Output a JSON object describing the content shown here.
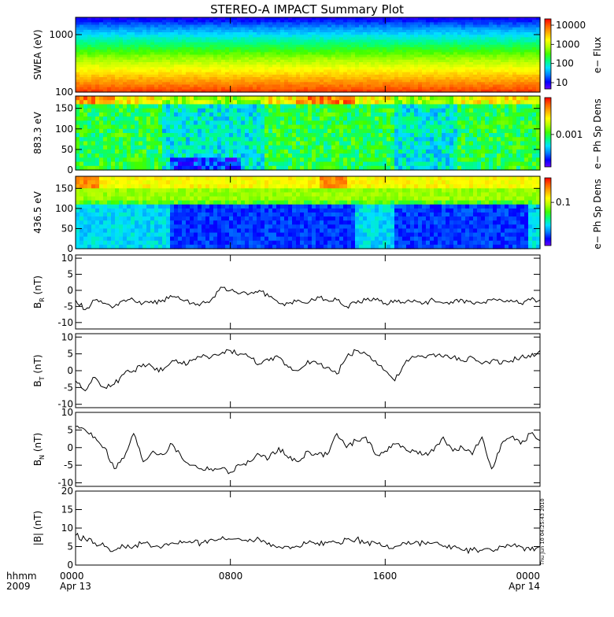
{
  "title": "STEREO-A IMPACT Summary Plot",
  "x_axis": {
    "row1_labels": [
      "hhmm",
      "0000",
      "0800",
      "1600",
      "0000"
    ],
    "row2_labels": [
      "2009",
      "Apr 13",
      "Apr 14"
    ]
  },
  "timestamp": "Thu Jun 10 04:25:43 2010",
  "colors": {
    "spectrum": [
      "#6a00ff",
      "#0000ff",
      "#0080ff",
      "#00e0ff",
      "#00ff80",
      "#40ff00",
      "#b0ff00",
      "#ffff00",
      "#ffb000",
      "#ff6000",
      "#ff0000"
    ]
  },
  "chart_data": [
    {
      "type": "heatmap",
      "name": "swea",
      "ylabel": "SWEA (eV)",
      "yscale": "log",
      "ylim": [
        100,
        2000
      ],
      "yticks": [
        "1000",
        "100"
      ],
      "colorbar_label": "e− Flux",
      "colorbar_ticks": [
        "10000",
        "1000",
        "100",
        "10"
      ],
      "colorbar_range": [
        3,
        30000
      ],
      "description_values": [
        {
          "energy_eV": 100,
          "flux": 20000
        },
        {
          "energy_eV": 200,
          "flux": 8000
        },
        {
          "energy_eV": 400,
          "flux": 800
        },
        {
          "energy_eV": 800,
          "flux": 150
        },
        {
          "energy_eV": 1500,
          "flux": 15
        },
        {
          "energy_eV": 2000,
          "flux": 5
        }
      ]
    },
    {
      "type": "heatmap",
      "name": "pad883",
      "ylabel": "883.3 eV",
      "ylim": [
        0,
        180
      ],
      "yticks": [
        "150",
        "100",
        "50",
        "0"
      ],
      "colorbar_label": "e− Ph Sp Dens",
      "colorbar_ticks": [
        "0.001"
      ],
      "colorbar_range": [
        0.0001,
        0.01
      ]
    },
    {
      "type": "heatmap",
      "name": "pad436",
      "ylabel": "436.5 eV",
      "ylim": [
        0,
        180
      ],
      "yticks": [
        "150",
        "100",
        "50",
        "0"
      ],
      "colorbar_label": "e− Ph Sp Dens",
      "colorbar_ticks": [
        "0.1"
      ],
      "colorbar_range": [
        0.01,
        1
      ]
    },
    {
      "type": "line",
      "name": "br",
      "ylabel": "B",
      "ylabel_sub": "R",
      "ylabel_unit": "(nT)",
      "ylim": [
        -12,
        11
      ],
      "yticks": [
        "10",
        "5",
        "0",
        "-5",
        "-10"
      ],
      "x": [
        0,
        0.5,
        1,
        1.5,
        2,
        2.5,
        3,
        3.5,
        4,
        4.5,
        5,
        5.5,
        6,
        6.5,
        7,
        7.5,
        8,
        8.5,
        9,
        9.5,
        10,
        10.5,
        11,
        11.5,
        12,
        12.5,
        13,
        13.5,
        14,
        14.5,
        15,
        15.5,
        16,
        16.5,
        17,
        17.5,
        18,
        18.5,
        19,
        19.5,
        20,
        20.5,
        21,
        21.5,
        22,
        22.5,
        23,
        23.5,
        24
      ],
      "values": [
        -3,
        -6,
        -3,
        -4,
        -5,
        -3,
        -3,
        -4,
        -4,
        -3,
        -2,
        -3,
        -4,
        -4,
        -3,
        1,
        0,
        -1,
        -1,
        0,
        -2,
        -4,
        -4,
        -3,
        -4,
        -2,
        -3,
        -3,
        -5,
        -4,
        -3,
        -3,
        -4,
        -3,
        -4,
        -3,
        -4,
        -3,
        -4,
        -4,
        -3,
        -4,
        -4,
        -3,
        -3,
        -3,
        -4,
        -3,
        -3
      ]
    },
    {
      "type": "line",
      "name": "bt",
      "ylabel": "B",
      "ylabel_sub": "T",
      "ylabel_unit": "(nT)",
      "ylim": [
        -11,
        11
      ],
      "yticks": [
        "10",
        "5",
        "0",
        "-5",
        "-10"
      ],
      "x": [
        0,
        0.5,
        1,
        1.5,
        2,
        2.5,
        3,
        3.5,
        4,
        4.5,
        5,
        5.5,
        6,
        6.5,
        7,
        7.5,
        8,
        8.5,
        9,
        9.5,
        10,
        10.5,
        11,
        11.5,
        12,
        12.5,
        13,
        13.5,
        14,
        14.5,
        15,
        15.5,
        16,
        16.5,
        17,
        17.5,
        18,
        18.5,
        19,
        19.5,
        20,
        20.5,
        21,
        21.5,
        22,
        22.5,
        23,
        23.5,
        24
      ],
      "values": [
        -3,
        -6,
        -2,
        -5,
        -4,
        -1,
        0,
        2,
        1,
        0,
        3,
        2,
        3,
        4,
        4,
        5,
        6,
        5,
        4,
        2,
        3,
        4,
        1,
        0,
        3,
        2,
        1,
        -1,
        4,
        6,
        5,
        3,
        0,
        -3,
        2,
        4,
        4,
        5,
        4,
        4,
        3,
        4,
        2,
        3,
        2,
        3,
        4,
        4,
        6
      ]
    },
    {
      "type": "line",
      "name": "bn",
      "ylabel": "B",
      "ylabel_sub": "N",
      "ylabel_unit": "(nT)",
      "ylim": [
        -11,
        10
      ],
      "yticks": [
        "10",
        "5",
        "0",
        "-5",
        "-10"
      ],
      "x": [
        0,
        0.5,
        1,
        1.5,
        2,
        2.5,
        3,
        3.5,
        4,
        4.5,
        5,
        5.5,
        6,
        6.5,
        7,
        7.5,
        8,
        8.5,
        9,
        9.5,
        10,
        10.5,
        11,
        11.5,
        12,
        12.5,
        13,
        13.5,
        14,
        14.5,
        15,
        15.5,
        16,
        16.5,
        17,
        17.5,
        18,
        18.5,
        19,
        19.5,
        20,
        20.5,
        21,
        21.5,
        22,
        22.5,
        23,
        23.5,
        24
      ],
      "values": [
        6,
        5,
        3,
        0,
        -6,
        -3,
        4,
        -4,
        -1,
        -2,
        1,
        -3,
        -5,
        -6,
        -6,
        -6,
        -7,
        -5,
        -4,
        -2,
        -3,
        0,
        -3,
        -4,
        -1,
        -2,
        -2,
        4,
        0,
        2,
        3,
        -2,
        -1,
        1,
        0,
        -1,
        -2,
        -1,
        3,
        -1,
        0,
        -2,
        3,
        -6,
        1,
        3,
        1,
        4,
        2
      ]
    },
    {
      "type": "line",
      "name": "btot",
      "ylabel": "|B|",
      "ylabel_unit": "(nT)",
      "ylim": [
        0,
        20
      ],
      "yticks": [
        "20",
        "15",
        "10",
        "5",
        "0"
      ],
      "x": [
        0,
        0.5,
        1,
        1.5,
        2,
        2.5,
        3,
        3.5,
        4,
        4.5,
        5,
        5.5,
        6,
        6.5,
        7,
        7.5,
        8,
        8.5,
        9,
        9.5,
        10,
        10.5,
        11,
        11.5,
        12,
        12.5,
        13,
        13.5,
        14,
        14.5,
        15,
        15.5,
        16,
        16.5,
        17,
        17.5,
        18,
        18.5,
        19,
        19.5,
        20,
        20.5,
        21,
        21.5,
        22,
        22.5,
        23,
        23.5,
        24
      ],
      "values": [
        8,
        7,
        6,
        5,
        4,
        5,
        5,
        6,
        5,
        5,
        6,
        6,
        6,
        6,
        7,
        7,
        7,
        7,
        7,
        7,
        6,
        5,
        5,
        5,
        6,
        6,
        6,
        6,
        7,
        7,
        6,
        6,
        5,
        5,
        6,
        6,
        6,
        6,
        5,
        5,
        4,
        4,
        4,
        4,
        5,
        5,
        5,
        4,
        5
      ]
    }
  ]
}
